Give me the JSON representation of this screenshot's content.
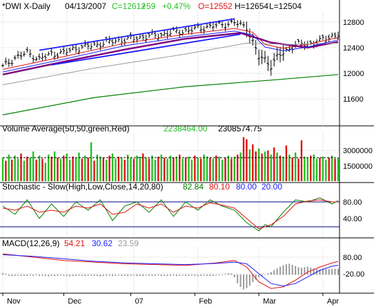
{
  "header": {
    "symbol": "*DWI X-Daily",
    "date": "04/13/2007",
    "close": "C=12612",
    "change": "+59",
    "pct": "+0.47%",
    "open": "O=12552",
    "high": "H=12654",
    "low": "L=12504"
  },
  "colors": {
    "background": "#ffffff",
    "grid": "#c8c8c8",
    "up": "#22c022",
    "down": "#e01010",
    "blue": "#1a1aff",
    "navy": "#000080",
    "purple": "#800080",
    "darkgreen": "#008000",
    "gray": "#9a9a9a",
    "orange": "#ff7f00"
  },
  "volume": {
    "title": "Volume Average(50,50,green,Red)",
    "v1": "2238464.00",
    "v2": "2308574.75"
  },
  "stochastic": {
    "title": "Stochastic - Slow(High,Low,Close,14,20,80)",
    "k": "82.84",
    "d": "80.10",
    "hi": "80.00",
    "lo": "20.00"
  },
  "macd": {
    "title": "MACD(12,26,9)",
    "macd": "54.21",
    "signal": "30.62",
    "hist": "23.59"
  },
  "chart_data": [
    {
      "type": "line",
      "panel": "price",
      "x_labels": [
        "Nov",
        "Dec",
        "07",
        "Feb",
        "Mar",
        "Apr"
      ],
      "y_ticks": [
        "12800",
        "12400",
        "12000",
        "11600"
      ],
      "y_tick_values": [
        12800,
        12400,
        12000,
        11600
      ],
      "ylim": [
        11200,
        12950
      ],
      "grid": true,
      "series": [
        {
          "name": "close",
          "x": [
            0,
            4,
            8,
            12,
            16,
            20,
            24,
            28,
            32,
            36,
            40,
            44,
            48,
            52,
            56,
            60,
            64,
            68,
            72,
            76,
            80,
            84,
            86,
            88,
            90,
            93,
            96,
            100,
            104,
            108,
            110
          ],
          "values": [
            12100,
            12240,
            12320,
            12220,
            12300,
            12320,
            12390,
            12420,
            12460,
            12500,
            12520,
            12550,
            12580,
            12600,
            12640,
            12660,
            12700,
            12730,
            12760,
            12790,
            12720,
            12250,
            12220,
            12120,
            12250,
            12350,
            12450,
            12450,
            12500,
            12580,
            12612
          ]
        },
        {
          "name": "SMA 20",
          "x": [
            0,
            20,
            40,
            60,
            76,
            82,
            86,
            92,
            100,
            110
          ],
          "values": [
            12060,
            12260,
            12470,
            12610,
            12700,
            12640,
            12450,
            12390,
            12450,
            12560
          ]
        },
        {
          "name": "SMA 50",
          "x": [
            0,
            20,
            40,
            60,
            78,
            88,
            100,
            110
          ],
          "values": [
            11980,
            12180,
            12370,
            12540,
            12630,
            12480,
            12400,
            12490
          ]
        },
        {
          "name": "SMA 100",
          "x": [
            0,
            30,
            60,
            80,
            95,
            110
          ],
          "values": [
            11820,
            12080,
            12300,
            12470,
            12450,
            12470
          ]
        },
        {
          "name": "SMA 200",
          "x": [
            0,
            30,
            60,
            90,
            110
          ],
          "values": [
            11350,
            11620,
            11790,
            11900,
            11980
          ]
        },
        {
          "name": "channel upper",
          "x": [
            12,
            76
          ],
          "values": [
            12360,
            12850
          ]
        },
        {
          "name": "channel lower",
          "x": [
            16,
            78
          ],
          "values": [
            12130,
            12610
          ]
        }
      ]
    },
    {
      "type": "bar",
      "panel": "volume",
      "y_ticks": [
        "3000000",
        "1500000"
      ],
      "y_tick_values": [
        3000000,
        1500000
      ],
      "ylim": [
        0,
        4600000
      ],
      "average": 2300000,
      "values": [
        2300000,
        2000000,
        2600000,
        2100000,
        2500000,
        2200000,
        2700000,
        2000000,
        2400000,
        2300000,
        2900000,
        2100000,
        2500000,
        2200000,
        1800000,
        2600000,
        2400000,
        2900000,
        2300000,
        2200000,
        2500000,
        2700000,
        2100000,
        2400000,
        2300000,
        2800000,
        2200000,
        2500000,
        2300000,
        3800000,
        2000000,
        2600000,
        2400000,
        2300000,
        2100000,
        2500000,
        2700000,
        2200000,
        2400000,
        2300000,
        2100000,
        2600000,
        2300000,
        2200000,
        2500000,
        2400000,
        2700000,
        2300000,
        2200000,
        2500000,
        2100000,
        2400000,
        2600000,
        2300000,
        2200000,
        2500000,
        2300000,
        2400000,
        2600000,
        2200000,
        2300000,
        2400000,
        2100000,
        2500000,
        2300000,
        2200000,
        2600000,
        2400000,
        2300000,
        2200000,
        2500000,
        2400000,
        2100000,
        2300000,
        2500000,
        2200000,
        2400000,
        2600000,
        2800000,
        4300000,
        4100000,
        3100000,
        3600000,
        2900000,
        3200000,
        2700000,
        2900000,
        3000000,
        2600000,
        3300000,
        2800000,
        2500000,
        2400000,
        3500000,
        2600000,
        2300000,
        2800000,
        2200000,
        4000000,
        2400000,
        2300000,
        2500000,
        2600000,
        2200000,
        2300000,
        2400000,
        2100000,
        2300000,
        2500000,
        2200000,
        2300000
      ],
      "colors": [
        "up",
        "down",
        "up",
        "down",
        "up",
        "up",
        "down",
        "up",
        "down",
        "up",
        "up",
        "down",
        "up",
        "down",
        "up",
        "up",
        "down",
        "up",
        "down",
        "up",
        "down",
        "up",
        "up",
        "down",
        "up",
        "up",
        "down",
        "up",
        "down",
        "up",
        "down",
        "up",
        "up",
        "down",
        "up",
        "down",
        "up",
        "up",
        "down",
        "up",
        "down",
        "up",
        "up",
        "down",
        "up",
        "up",
        "down",
        "up",
        "down",
        "up",
        "up",
        "down",
        "up",
        "down",
        "up",
        "up",
        "down",
        "up",
        "down",
        "up",
        "down",
        "up",
        "up",
        "down",
        "up",
        "down",
        "up",
        "up",
        "down",
        "up",
        "down",
        "up",
        "up",
        "down",
        "up",
        "down",
        "up",
        "down",
        "up",
        "down",
        "down",
        "up",
        "down",
        "down",
        "up",
        "down",
        "up",
        "down",
        "up",
        "down",
        "up",
        "down",
        "up",
        "down",
        "up",
        "down",
        "up",
        "down",
        "down",
        "up",
        "up",
        "down",
        "up",
        "up",
        "down",
        "up",
        "up",
        "down",
        "up",
        "down",
        "up"
      ]
    },
    {
      "type": "line",
      "panel": "stochastic",
      "y_ticks": [
        "80.00",
        "40.00"
      ],
      "y_tick_values": [
        80,
        40
      ],
      "ylim": [
        0,
        100
      ],
      "reference_lines": [
        80,
        20
      ],
      "series": [
        {
          "name": "%K",
          "x": [
            0,
            4,
            8,
            12,
            16,
            20,
            24,
            28,
            32,
            36,
            40,
            44,
            48,
            52,
            56,
            60,
            64,
            68,
            72,
            76,
            80,
            84,
            86,
            88,
            92,
            96,
            100,
            104,
            108,
            110
          ],
          "values": [
            70,
            50,
            85,
            40,
            75,
            45,
            80,
            60,
            85,
            35,
            70,
            80,
            55,
            85,
            45,
            80,
            60,
            85,
            70,
            60,
            30,
            10,
            25,
            20,
            55,
            85,
            80,
            90,
            75,
            83
          ]
        },
        {
          "name": "%D",
          "x": [
            0,
            4,
            8,
            12,
            16,
            20,
            24,
            28,
            32,
            36,
            40,
            44,
            48,
            52,
            56,
            60,
            64,
            68,
            72,
            76,
            80,
            84,
            86,
            88,
            92,
            96,
            100,
            104,
            108,
            110
          ],
          "values": [
            65,
            60,
            70,
            55,
            60,
            55,
            70,
            65,
            75,
            50,
            55,
            75,
            65,
            75,
            55,
            70,
            65,
            78,
            72,
            65,
            40,
            15,
            20,
            25,
            45,
            75,
            82,
            85,
            80,
            80
          ]
        }
      ]
    },
    {
      "type": "line",
      "panel": "macd",
      "y_ticks": [
        "80.00",
        "-20.00"
      ],
      "y_tick_values": [
        80,
        -20
      ],
      "ylim": [
        -130,
        130
      ],
      "series": [
        {
          "name": "MACD",
          "x": [
            0,
            10,
            20,
            30,
            40,
            50,
            60,
            70,
            76,
            80,
            84,
            88,
            92,
            96,
            100,
            104,
            108,
            110
          ],
          "values": [
            100,
            80,
            60,
            50,
            40,
            35,
            30,
            45,
            60,
            20,
            -70,
            -110,
            -100,
            -60,
            -10,
            20,
            45,
            54
          ]
        },
        {
          "name": "Signal",
          "x": [
            0,
            10,
            20,
            30,
            40,
            50,
            60,
            70,
            76,
            80,
            84,
            88,
            92,
            96,
            100,
            104,
            108,
            110
          ],
          "values": [
            95,
            85,
            70,
            55,
            45,
            40,
            35,
            42,
            50,
            40,
            -20,
            -80,
            -95,
            -80,
            -40,
            0,
            25,
            31
          ]
        }
      ],
      "histogram": [
        5,
        2,
        -4,
        -5,
        -4,
        -3,
        -5,
        -4,
        -5,
        -3,
        -4,
        -2,
        -4,
        -4,
        -5,
        -6,
        -4,
        -5,
        -4,
        -3,
        -4,
        -5,
        -6,
        -5,
        -4,
        -3,
        -4,
        -5,
        -4,
        -3,
        -5,
        -4,
        -6,
        -5,
        -4,
        -3,
        -5,
        -4,
        -3,
        -5,
        -4,
        -5,
        -4,
        -3,
        -5,
        -4,
        -5,
        -3,
        -4,
        -5,
        -4,
        -3,
        -5,
        -4,
        -5,
        -4,
        -3,
        -5,
        -4,
        -3,
        -5,
        -4,
        -3,
        -4,
        -5,
        -4,
        -3,
        -4,
        -5,
        -4,
        -3,
        -2,
        -1,
        2,
        5,
        4,
        -10,
        -35,
        -50,
        -60,
        -55,
        -45,
        -30,
        -20,
        -10,
        -5,
        0,
        5,
        10,
        18,
        25,
        32,
        38,
        42,
        45,
        40,
        35,
        30,
        28,
        30,
        32,
        28,
        25,
        22,
        20,
        24,
        23,
        22,
        23,
        24,
        23
      ]
    }
  ]
}
